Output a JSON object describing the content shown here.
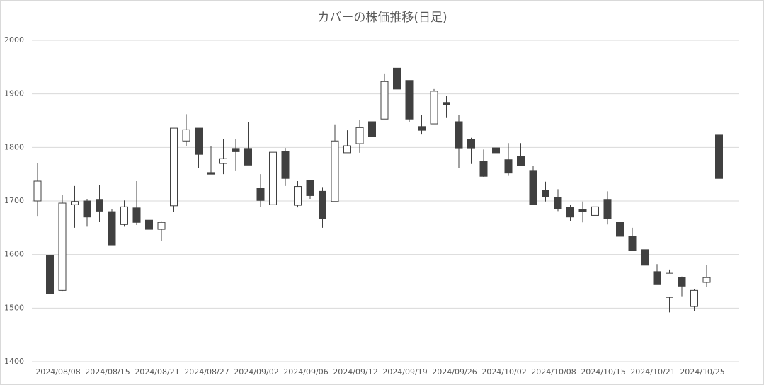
{
  "chart_data": {
    "type": "candlestick",
    "title": "カバーの株価推移(日足)",
    "categories": [
      null,
      null,
      "2024/08/08",
      null,
      null,
      null,
      "2024/08/15",
      null,
      null,
      null,
      "2024/08/21",
      null,
      null,
      null,
      "2024/08/27",
      null,
      null,
      null,
      "2024/09/02",
      null,
      null,
      null,
      "2024/09/06",
      null,
      null,
      null,
      "2024/09/12",
      null,
      null,
      null,
      "2024/09/19",
      null,
      null,
      null,
      "2024/09/26",
      null,
      null,
      null,
      "2024/10/02",
      null,
      null,
      null,
      "2024/10/08",
      null,
      null,
      null,
      "2024/10/15",
      null,
      null,
      null,
      "2024/10/21",
      null,
      null,
      null,
      "2024/10/25",
      null
    ],
    "open": [
      1700,
      1598,
      1533,
      1693,
      1700,
      1703,
      1680,
      1656,
      1687,
      1664,
      1647,
      1691,
      1812,
      1836,
      1753,
      1770,
      1798,
      1798,
      1724,
      1693,
      1792,
      1692,
      1738,
      1718,
      1699,
      1790,
      1807,
      1848,
      1853,
      1948,
      1925,
      1839,
      1844,
      1884,
      1848,
      1815,
      1774,
      1799,
      1777,
      1783,
      1757,
      1720,
      1707,
      1688,
      1684,
      1673,
      1703,
      1660,
      1634,
      1609,
      1568,
      1520,
      1557,
      1503,
      1548,
      1823
    ],
    "high": [
      1771,
      1647,
      1711,
      1728,
      1704,
      1730,
      1685,
      1701,
      1737,
      1679,
      1662,
      1836,
      1862,
      1836,
      1802,
      1815,
      1815,
      1848,
      1750,
      1802,
      1799,
      1737,
      1738,
      1726,
      1843,
      1832,
      1852,
      1870,
      1938,
      1948,
      1925,
      1860,
      1909,
      1896,
      1860,
      1818,
      1796,
      1799,
      1808,
      1808,
      1765,
      1736,
      1722,
      1693,
      1699,
      1693,
      1718,
      1667,
      1650,
      1609,
      1582,
      1572,
      1559,
      1535,
      1581,
      1823
    ],
    "low": [
      1672,
      1490,
      1532,
      1650,
      1652,
      1661,
      1618,
      1652,
      1655,
      1634,
      1626,
      1680,
      1803,
      1762,
      1750,
      1750,
      1757,
      1767,
      1689,
      1683,
      1728,
      1688,
      1704,
      1650,
      1699,
      1790,
      1790,
      1799,
      1853,
      1892,
      1847,
      1824,
      1844,
      1855,
      1762,
      1769,
      1745,
      1765,
      1748,
      1766,
      1693,
      1699,
      1681,
      1663,
      1660,
      1644,
      1656,
      1619,
      1607,
      1580,
      1545,
      1492,
      1522,
      1494,
      1539,
      1709
    ],
    "close": [
      1737,
      1527,
      1696,
      1699,
      1670,
      1681,
      1618,
      1689,
      1660,
      1647,
      1660,
      1836,
      1833,
      1787,
      1750,
      1779,
      1792,
      1767,
      1701,
      1791,
      1742,
      1727,
      1710,
      1667,
      1812,
      1803,
      1837,
      1820,
      1923,
      1909,
      1853,
      1832,
      1905,
      1880,
      1799,
      1799,
      1746,
      1790,
      1752,
      1766,
      1693,
      1708,
      1685,
      1670,
      1680,
      1689,
      1667,
      1634,
      1607,
      1580,
      1545,
      1565,
      1541,
      1533,
      1557,
      1742
    ],
    "up_color": "#ffffff",
    "down_color": "#404040",
    "line_color": "#404040",
    "ylim": [
      1400,
      2000
    ],
    "yticks": [
      1400,
      1500,
      1600,
      1700,
      1800,
      1900,
      2000
    ],
    "grid": true
  }
}
